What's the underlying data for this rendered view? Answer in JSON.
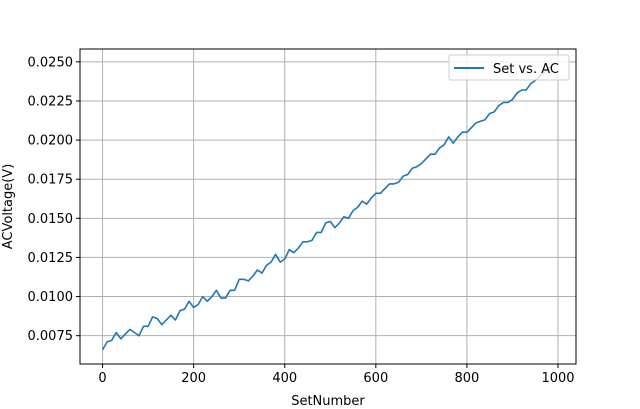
{
  "chart_data": {
    "type": "line",
    "title": "",
    "xlabel": "SetNumber",
    "ylabel": "ACVoltage(V)",
    "xlim": [
      -49.5,
      1039.5
    ],
    "ylim": [
      0.00569,
      0.02582
    ],
    "grid": true,
    "legend_placement": "upper right",
    "xticks": [
      0,
      200,
      400,
      600,
      800,
      1000
    ],
    "xtick_labels": [
      "0",
      "200",
      "400",
      "600",
      "800",
      "1000"
    ],
    "yticks": [
      0.0075,
      0.01,
      0.0125,
      0.015,
      0.0175,
      0.02,
      0.0225,
      0.025
    ],
    "ytick_labels": [
      "0.0075",
      "0.0100",
      "0.0125",
      "0.0150",
      "0.0175",
      "0.0200",
      "0.0225",
      "0.0250"
    ],
    "series": [
      {
        "name": "Set vs. AC",
        "color": "#1f77b4",
        "x": [
          0,
          10,
          20,
          30,
          40,
          50,
          60,
          70,
          80,
          90,
          100,
          110,
          120,
          130,
          140,
          150,
          160,
          170,
          180,
          190,
          200,
          210,
          220,
          230,
          240,
          250,
          260,
          270,
          280,
          290,
          300,
          310,
          320,
          330,
          340,
          350,
          360,
          370,
          380,
          390,
          400,
          410,
          420,
          430,
          440,
          450,
          460,
          470,
          480,
          490,
          500,
          510,
          520,
          530,
          540,
          550,
          560,
          570,
          580,
          590,
          600,
          610,
          620,
          630,
          640,
          650,
          660,
          670,
          680,
          690,
          700,
          710,
          720,
          730,
          740,
          750,
          760,
          770,
          780,
          790,
          800,
          810,
          820,
          830,
          840,
          850,
          860,
          870,
          880,
          890,
          900,
          910,
          920,
          930,
          940,
          950,
          960,
          970,
          980,
          990
        ],
        "y": [
          0.0066,
          0.0071,
          0.0072,
          0.0077,
          0.0073,
          0.0076,
          0.0079,
          0.0077,
          0.0075,
          0.0081,
          0.0081,
          0.0087,
          0.0086,
          0.0082,
          0.0085,
          0.0088,
          0.0085,
          0.0091,
          0.0092,
          0.0097,
          0.0093,
          0.0095,
          0.01,
          0.0097,
          0.01,
          0.0104,
          0.0099,
          0.0099,
          0.0104,
          0.0104,
          0.0111,
          0.0111,
          0.011,
          0.0113,
          0.0117,
          0.0115,
          0.012,
          0.0122,
          0.0127,
          0.0122,
          0.0124,
          0.013,
          0.0128,
          0.0131,
          0.0135,
          0.0135,
          0.0136,
          0.0141,
          0.0141,
          0.0147,
          0.0148,
          0.0144,
          0.0147,
          0.0151,
          0.015,
          0.0155,
          0.0157,
          0.0161,
          0.0159,
          0.0163,
          0.0166,
          0.0166,
          0.0169,
          0.0172,
          0.0172,
          0.0173,
          0.0177,
          0.0178,
          0.0182,
          0.0183,
          0.0185,
          0.0188,
          0.0191,
          0.0191,
          0.0195,
          0.0197,
          0.0202,
          0.0198,
          0.0202,
          0.0205,
          0.0205,
          0.0208,
          0.0211,
          0.0212,
          0.0213,
          0.0217,
          0.0218,
          0.0222,
          0.0224,
          0.0224,
          0.0226,
          0.023,
          0.0232,
          0.0232,
          0.0236,
          0.0238,
          0.0241,
          0.0243,
          0.0246,
          0.0249
        ]
      }
    ]
  }
}
